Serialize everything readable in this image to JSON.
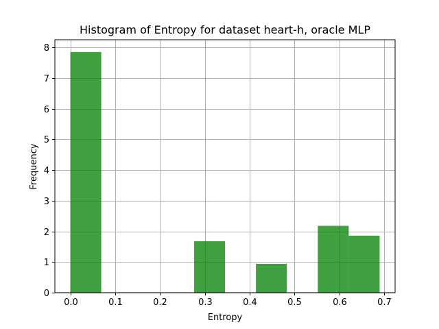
{
  "chart_data": {
    "type": "bar",
    "title": "Histogram of Entropy for dataset heart-h, oracle MLP",
    "xlabel": "Entropy",
    "ylabel": "Frequency",
    "xlim": [
      -0.0345,
      0.7245
    ],
    "ylim": [
      0,
      8.25
    ],
    "xticks": [
      "0.0",
      "0.1",
      "0.2",
      "0.3",
      "0.4",
      "0.5",
      "0.6",
      "0.7"
    ],
    "xtick_values": [
      0.0,
      0.1,
      0.2,
      0.3,
      0.4,
      0.5,
      0.6,
      0.7
    ],
    "yticks": [
      "0",
      "1",
      "2",
      "3",
      "4",
      "5",
      "6",
      "7",
      "8"
    ],
    "ytick_values": [
      0,
      1,
      2,
      3,
      4,
      5,
      6,
      7,
      8
    ],
    "grid": true,
    "bar_color": "#008000",
    "bar_alpha": 0.75,
    "bins": [
      {
        "x_start": 0.0,
        "x_end": 0.069,
        "value": 7.85
      },
      {
        "x_start": 0.069,
        "x_end": 0.138,
        "value": 0
      },
      {
        "x_start": 0.138,
        "x_end": 0.207,
        "value": 0
      },
      {
        "x_start": 0.207,
        "x_end": 0.276,
        "value": 0
      },
      {
        "x_start": 0.276,
        "x_end": 0.345,
        "value": 1.68
      },
      {
        "x_start": 0.345,
        "x_end": 0.414,
        "value": 0
      },
      {
        "x_start": 0.414,
        "x_end": 0.483,
        "value": 0.94
      },
      {
        "x_start": 0.483,
        "x_end": 0.552,
        "value": 0
      },
      {
        "x_start": 0.552,
        "x_end": 0.621,
        "value": 2.18
      },
      {
        "x_start": 0.621,
        "x_end": 0.69,
        "value": 1.86
      }
    ]
  }
}
